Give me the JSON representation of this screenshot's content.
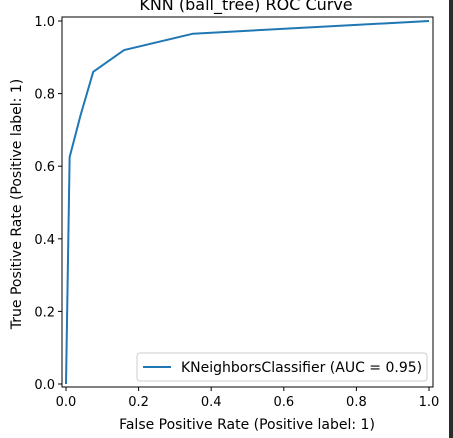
{
  "chart_data": {
    "type": "line",
    "title": "KNN (ball_tree) ROC Curve",
    "xlabel": "False Positive Rate (Positive label: 1)",
    "ylabel": "True Positive Rate (Positive label: 1)",
    "xlim": [
      0.0,
      1.0
    ],
    "ylim": [
      0.0,
      1.0
    ],
    "x_ticks": [
      "0.0",
      "0.2",
      "0.4",
      "0.6",
      "0.8",
      "1.0"
    ],
    "y_ticks": [
      "0.0",
      "0.2",
      "0.4",
      "0.6",
      "0.8",
      "1.0"
    ],
    "grid": false,
    "legend_position": "lower-right",
    "series": [
      {
        "name": "KNeighborsClassifier (AUC = 0.95)",
        "color": "#1f77b4",
        "x": [
          0.0,
          0.01,
          0.04,
          0.075,
          0.16,
          0.35,
          1.0
        ],
        "y": [
          0.0,
          0.625,
          0.74,
          0.86,
          0.92,
          0.965,
          1.0
        ]
      }
    ]
  }
}
